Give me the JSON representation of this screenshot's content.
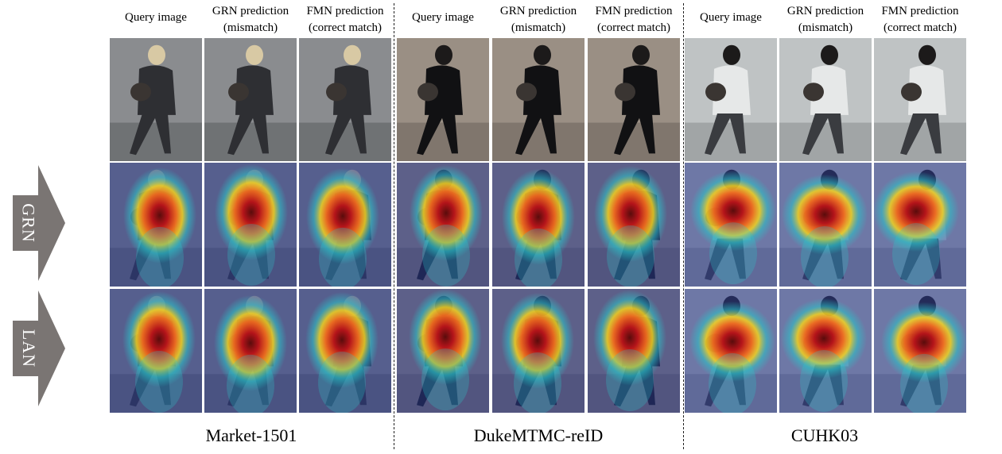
{
  "figure": {
    "column_headers": [
      [
        "Query image"
      ],
      [
        "GRN prediction",
        "(mismatch)"
      ],
      [
        "FMN prediction",
        "(correct match)"
      ],
      [
        "Query image"
      ],
      [
        "GRN prediction",
        "(mismatch)"
      ],
      [
        "FMN prediction",
        "(correct match)"
      ],
      [
        "Query image"
      ],
      [
        "GRN prediction",
        "(mismatch)"
      ],
      [
        "FMN prediction",
        "(correct match)"
      ]
    ],
    "row_labels": [
      "GRN",
      "LAN"
    ],
    "datasets": [
      "Market-1501",
      "DukeMTMC-reID",
      "CUHK03"
    ],
    "colors": {
      "arrow": "#7a7573",
      "heat_hot": "#b4141a",
      "heat_warm": "#f3d21e",
      "heat_cool": "#2ac4c9",
      "heat_background": "#2b3a8e",
      "divider": "#222222"
    },
    "icons": [
      "row-arrow-icon"
    ]
  }
}
